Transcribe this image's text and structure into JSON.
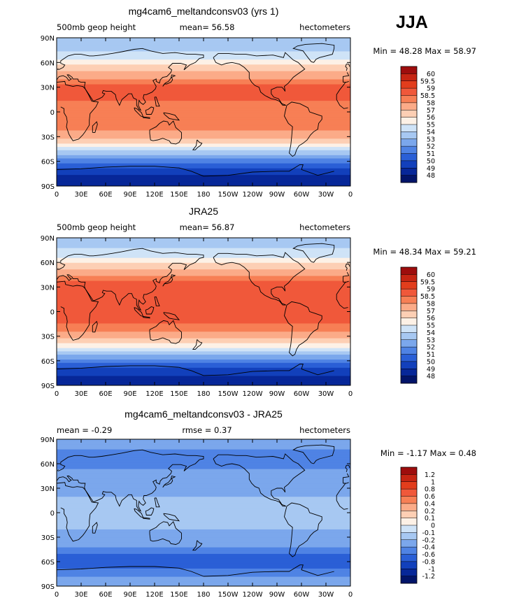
{
  "figure": {
    "season_label": "JJA"
  },
  "chart_data": [
    {
      "type": "heatmap",
      "title": "mg4cam6_meltandconsv03 (yrs 1)",
      "left_label": "500mb geop height",
      "center_label": "mean=  56.58",
      "right_label": "hectometers",
      "stats": "Min =  48.28  Max =  58.97",
      "mean": 56.58,
      "min": 48.28,
      "max": 58.97,
      "x_ticks": [
        "0",
        "30E",
        "60E",
        "90E",
        "120E",
        "150E",
        "180",
        "150W",
        "120W",
        "90W",
        "60W",
        "30W",
        "0"
      ],
      "y_ticks": [
        "90N",
        "60N",
        "30N",
        "0",
        "30S",
        "60S",
        "90S"
      ],
      "colorbar_levels": [
        "60",
        "59.5",
        "59",
        "58.5",
        "58",
        "57",
        "56",
        "55",
        "54",
        "53",
        "52",
        "51",
        "50",
        "49",
        "48"
      ],
      "colorbar_colors": [
        "#9e0d0d",
        "#c62513",
        "#e23d1c",
        "#f0583a",
        "#f77f55",
        "#fbab88",
        "#fdcfb4",
        "#fdf1e6",
        "#cfe3f7",
        "#a7c8f2",
        "#7ba7ec",
        "#4f83e4",
        "#2a5fd6",
        "#1240bb",
        "#072798",
        "#021469"
      ],
      "profile_lat": [
        -90,
        -80,
        -70,
        -60,
        -50,
        -40,
        -30,
        -20,
        -10,
        0,
        10,
        20,
        30,
        40,
        50,
        60,
        70,
        80,
        90
      ],
      "profile_values": [
        48.3,
        48.6,
        49.6,
        51.2,
        53.3,
        55.5,
        57.2,
        58.1,
        58.3,
        58.2,
        58.4,
        58.7,
        58.7,
        58.1,
        57.0,
        55.6,
        54.3,
        53.5,
        53.2
      ]
    },
    {
      "type": "heatmap",
      "title": "JRA25",
      "left_label": "500mb geop height",
      "center_label": "mean=  56.87",
      "right_label": "hectometers",
      "stats": "Min =  48.34  Max =  59.21",
      "mean": 56.87,
      "min": 48.34,
      "max": 59.21,
      "x_ticks": [
        "0",
        "30E",
        "60E",
        "90E",
        "120E",
        "150E",
        "180",
        "150W",
        "120W",
        "90W",
        "60W",
        "30W",
        "0"
      ],
      "y_ticks": [
        "90N",
        "60N",
        "30N",
        "0",
        "30S",
        "60S",
        "90S"
      ],
      "colorbar_levels": [
        "60",
        "59.5",
        "59",
        "58.5",
        "58",
        "57",
        "56",
        "55",
        "54",
        "53",
        "52",
        "51",
        "50",
        "49",
        "48"
      ],
      "colorbar_colors": [
        "#9e0d0d",
        "#c62513",
        "#e23d1c",
        "#f0583a",
        "#f77f55",
        "#fbab88",
        "#fdcfb4",
        "#fdf1e6",
        "#cfe3f7",
        "#a7c8f2",
        "#7ba7ec",
        "#4f83e4",
        "#2a5fd6",
        "#1240bb",
        "#072798",
        "#021469"
      ],
      "profile_lat": [
        -90,
        -80,
        -70,
        -60,
        -50,
        -40,
        -30,
        -20,
        -10,
        0,
        10,
        20,
        30,
        40,
        50,
        60,
        70,
        80,
        90
      ],
      "profile_values": [
        48.4,
        48.7,
        49.8,
        51.4,
        53.6,
        55.8,
        57.4,
        58.3,
        58.6,
        58.5,
        58.6,
        58.9,
        59.0,
        58.4,
        57.3,
        55.9,
        54.6,
        53.8,
        53.5
      ]
    },
    {
      "type": "heatmap",
      "title": "mg4cam6_meltandconsv03 - JRA25",
      "left_label": "mean =  -0.29",
      "center_label": "rmse =   0.37",
      "right_label": "hectometers",
      "stats": "Min =  -1.17  Max =   0.48",
      "mean": -0.29,
      "rmse": 0.37,
      "min": -1.17,
      "max": 0.48,
      "x_ticks": [
        "0",
        "30E",
        "60E",
        "90E",
        "120E",
        "150E",
        "180",
        "150W",
        "120W",
        "90W",
        "60W",
        "30W",
        "0"
      ],
      "y_ticks": [
        "90N",
        "60N",
        "30N",
        "0",
        "30S",
        "60S",
        "90S"
      ],
      "colorbar_levels": [
        "1.2",
        "1",
        "0.8",
        "0.6",
        "0.4",
        "0.2",
        "0.1",
        "0",
        "-0.1",
        "-0.2",
        "-0.4",
        "-0.6",
        "-0.8",
        "-1",
        "-1.2"
      ],
      "colorbar_colors": [
        "#9e0d0d",
        "#c62513",
        "#e23d1c",
        "#f0583a",
        "#f77f55",
        "#fbab88",
        "#fdcfb4",
        "#fdf1e6",
        "#cfe3f7",
        "#a7c8f2",
        "#7ba7ec",
        "#4f83e4",
        "#2a5fd6",
        "#1240bb",
        "#072798",
        "#021469"
      ],
      "profile_lat": [
        -90,
        -80,
        -70,
        -60,
        -50,
        -40,
        -30,
        -20,
        -10,
        0,
        10,
        20,
        30,
        40,
        50,
        60,
        70,
        80,
        90
      ],
      "profile_values": [
        -0.2,
        -0.35,
        -0.55,
        -0.75,
        -0.6,
        -0.35,
        -0.25,
        -0.2,
        -0.15,
        -0.15,
        -0.15,
        -0.2,
        -0.25,
        -0.3,
        -0.35,
        -0.5,
        -0.55,
        -0.35,
        -0.2
      ]
    }
  ]
}
